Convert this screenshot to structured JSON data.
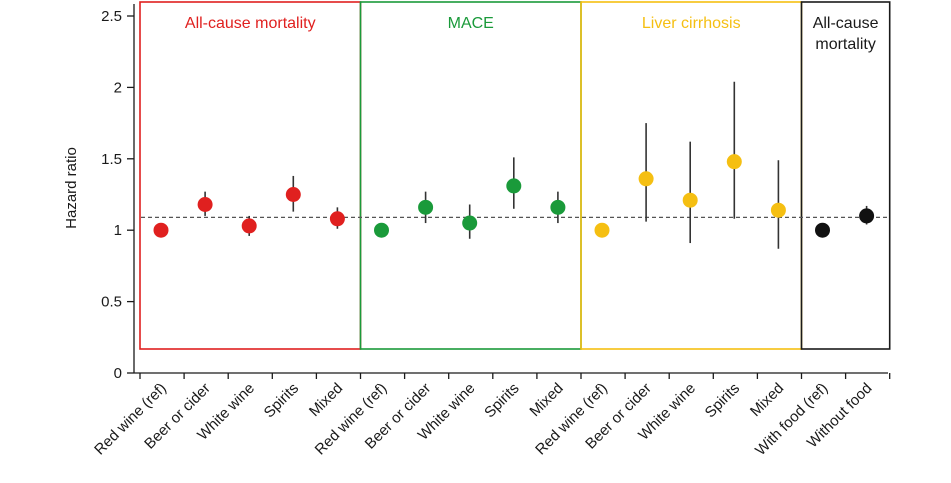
{
  "chart_data": {
    "type": "scatter",
    "ylabel": "Hazard ratio",
    "ylim": [
      0,
      2.5
    ],
    "yticks": [
      "0",
      "0.5",
      "1",
      "1.5",
      "2",
      "2.5"
    ],
    "reference_line": 1.09,
    "categories": [
      "Red wine (ref)",
      "Beer or cider",
      "White wine",
      "Spirits",
      "Mixed",
      "Red wine (ref)",
      "Beer or cider",
      "White wine",
      "Spirits",
      "Mixed",
      "Red wine (ref)",
      "Beer or cider",
      "White wine",
      "Spirits",
      "Mixed",
      "With food (ref)",
      "Without food"
    ],
    "panels": [
      {
        "label_lines": [
          "All-cause mortality"
        ],
        "color": "#e0201f",
        "text_color": "#e0201f",
        "start": 0,
        "end": 4
      },
      {
        "label_lines": [
          "MACE"
        ],
        "color": "#1a9a3a",
        "text_color": "#1a9a3a",
        "start": 5,
        "end": 9
      },
      {
        "label_lines": [
          "Liver cirrhosis"
        ],
        "color": "#f5bf12",
        "text_color": "#f5bf12",
        "start": 10,
        "end": 14
      },
      {
        "label_lines": [
          "All-cause",
          "mortality"
        ],
        "color": "#1a1a1a",
        "text_color": "#1a1a1a",
        "start": 15,
        "end": 16
      }
    ],
    "series": [
      {
        "panel": 0,
        "color": "#e0201f",
        "values": [
          1.0,
          1.18,
          1.03,
          1.25,
          1.08
        ],
        "lower": [
          0.99,
          1.1,
          0.96,
          1.13,
          1.01
        ],
        "upper": [
          1.01,
          1.27,
          1.1,
          1.38,
          1.16
        ]
      },
      {
        "panel": 1,
        "color": "#1a9a3a",
        "values": [
          1.0,
          1.16,
          1.05,
          1.31,
          1.16
        ],
        "lower": [
          1.0,
          1.05,
          0.94,
          1.15,
          1.05
        ],
        "upper": [
          1.0,
          1.27,
          1.18,
          1.51,
          1.27
        ]
      },
      {
        "panel": 2,
        "color": "#f5bf12",
        "values": [
          1.0,
          1.36,
          1.21,
          1.48,
          1.14
        ],
        "lower": [
          1.0,
          1.06,
          0.91,
          1.08,
          0.87
        ],
        "upper": [
          1.0,
          1.75,
          1.62,
          2.04,
          1.49
        ]
      },
      {
        "panel": 3,
        "color": "#111111",
        "values": [
          1.0,
          1.1
        ],
        "lower": [
          1.0,
          1.04
        ],
        "upper": [
          1.0,
          1.17
        ]
      }
    ]
  }
}
